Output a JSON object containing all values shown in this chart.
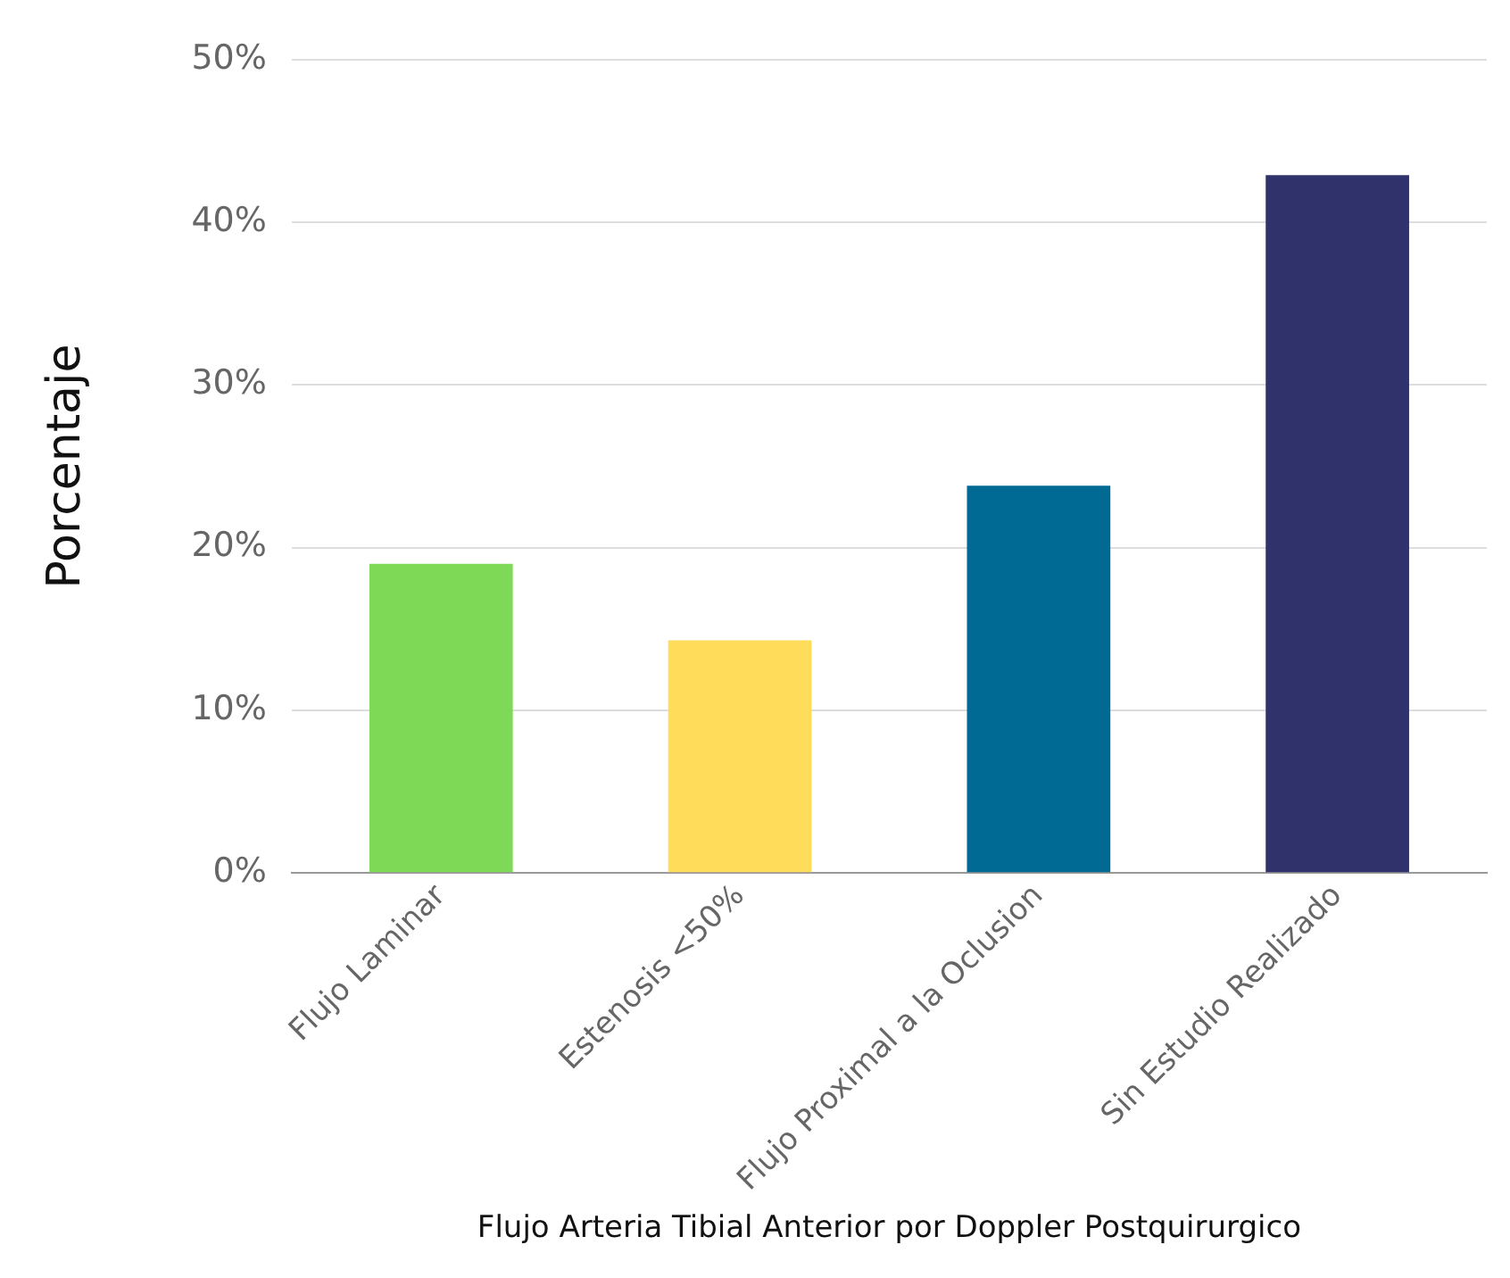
{
  "chart_data": {
    "type": "bar",
    "xlabel": "Flujo Arteria Tibial Anterior por Doppler Postquirurgico",
    "ylabel": "Porcentaje",
    "categories": [
      "Flujo Laminar",
      "Estenosis <50%",
      "Flujo Proximal a la Oclusion",
      "Sin Estudio Realizado"
    ],
    "values": [
      19.0,
      14.3,
      23.8,
      42.9
    ],
    "colors": [
      "#7ed957",
      "#ffdc5a",
      "#006994",
      "#30336b"
    ],
    "ylim": [
      0,
      50
    ],
    "yticks": [
      {
        "value": 0,
        "label": "0%"
      },
      {
        "value": 10,
        "label": "10%"
      },
      {
        "value": 20,
        "label": "20%"
      },
      {
        "value": 30,
        "label": "30%"
      },
      {
        "value": 40,
        "label": "40%"
      },
      {
        "value": 50,
        "label": "50%"
      }
    ],
    "grid": "y",
    "legend": false
  }
}
